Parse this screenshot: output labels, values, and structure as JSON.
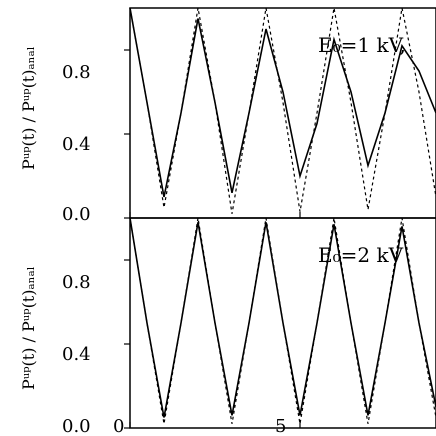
{
  "chart_data": [
    {
      "type": "line",
      "panel": "top",
      "annotation": "E₀=1 kV,",
      "ylabel": "Pᵘᵖ(t) / Pᵘᵖ(t)ₐₙₐₗ",
      "ylim": [
        0.0,
        1.0
      ],
      "yticks": [
        "0.0",
        "0.4",
        "0.8"
      ],
      "xlim": [
        0,
        9
      ],
      "grid": false,
      "series": [
        {
          "style": "solid",
          "x": [
            0,
            0.5,
            1.0,
            1.5,
            2.0,
            2.5,
            3.0,
            3.5,
            4.0,
            4.5,
            5.0,
            5.5,
            6.0,
            6.5,
            7.0,
            7.5,
            8.0,
            8.5,
            9.0
          ],
          "y": [
            1.0,
            0.55,
            0.1,
            0.5,
            0.95,
            0.55,
            0.12,
            0.5,
            0.9,
            0.6,
            0.2,
            0.45,
            0.85,
            0.6,
            0.25,
            0.5,
            0.82,
            0.7,
            0.5
          ]
        },
        {
          "style": "dashed",
          "x": [
            0,
            0.5,
            1.0,
            1.5,
            2.0,
            2.5,
            3.0,
            3.5,
            4.0,
            4.5,
            5.0,
            5.5,
            6.0,
            6.5,
            7.0,
            7.5,
            8.0,
            8.5,
            9.0
          ],
          "y": [
            1.0,
            0.55,
            0.05,
            0.5,
            1.0,
            0.55,
            0.02,
            0.5,
            1.0,
            0.55,
            0.03,
            0.5,
            1.0,
            0.55,
            0.04,
            0.5,
            1.0,
            0.6,
            0.1
          ]
        }
      ]
    },
    {
      "type": "line",
      "panel": "bottom",
      "annotation": "E₀=2 kV",
      "ylabel": "Pᵘᵖ(t) / Pᵘᵖ(t)ₐₙₐₗ",
      "ylim": [
        0.0,
        1.0
      ],
      "yticks": [
        "0.0",
        "0.4",
        "0.8"
      ],
      "xlim": [
        0,
        9
      ],
      "xticks": [
        "0",
        "5"
      ],
      "grid": false,
      "series": [
        {
          "style": "solid",
          "x": [
            0,
            0.5,
            1.0,
            1.5,
            2.0,
            2.5,
            3.0,
            3.5,
            4.0,
            4.5,
            5.0,
            5.5,
            6.0,
            6.5,
            7.0,
            7.5,
            8.0,
            8.5,
            9.0
          ],
          "y": [
            1.0,
            0.5,
            0.05,
            0.5,
            0.98,
            0.5,
            0.06,
            0.5,
            0.98,
            0.5,
            0.06,
            0.5,
            0.97,
            0.5,
            0.06,
            0.5,
            0.96,
            0.5,
            0.1
          ]
        },
        {
          "style": "dashed",
          "x": [
            0,
            0.5,
            1.0,
            1.5,
            2.0,
            2.5,
            3.0,
            3.5,
            4.0,
            4.5,
            5.0,
            5.5,
            6.0,
            6.5,
            7.0,
            7.5,
            8.0,
            8.5,
            9.0
          ],
          "y": [
            1.0,
            0.5,
            0.02,
            0.5,
            1.0,
            0.5,
            0.02,
            0.5,
            1.0,
            0.5,
            0.02,
            0.5,
            1.0,
            0.5,
            0.02,
            0.5,
            1.0,
            0.5,
            0.05
          ]
        }
      ]
    }
  ]
}
